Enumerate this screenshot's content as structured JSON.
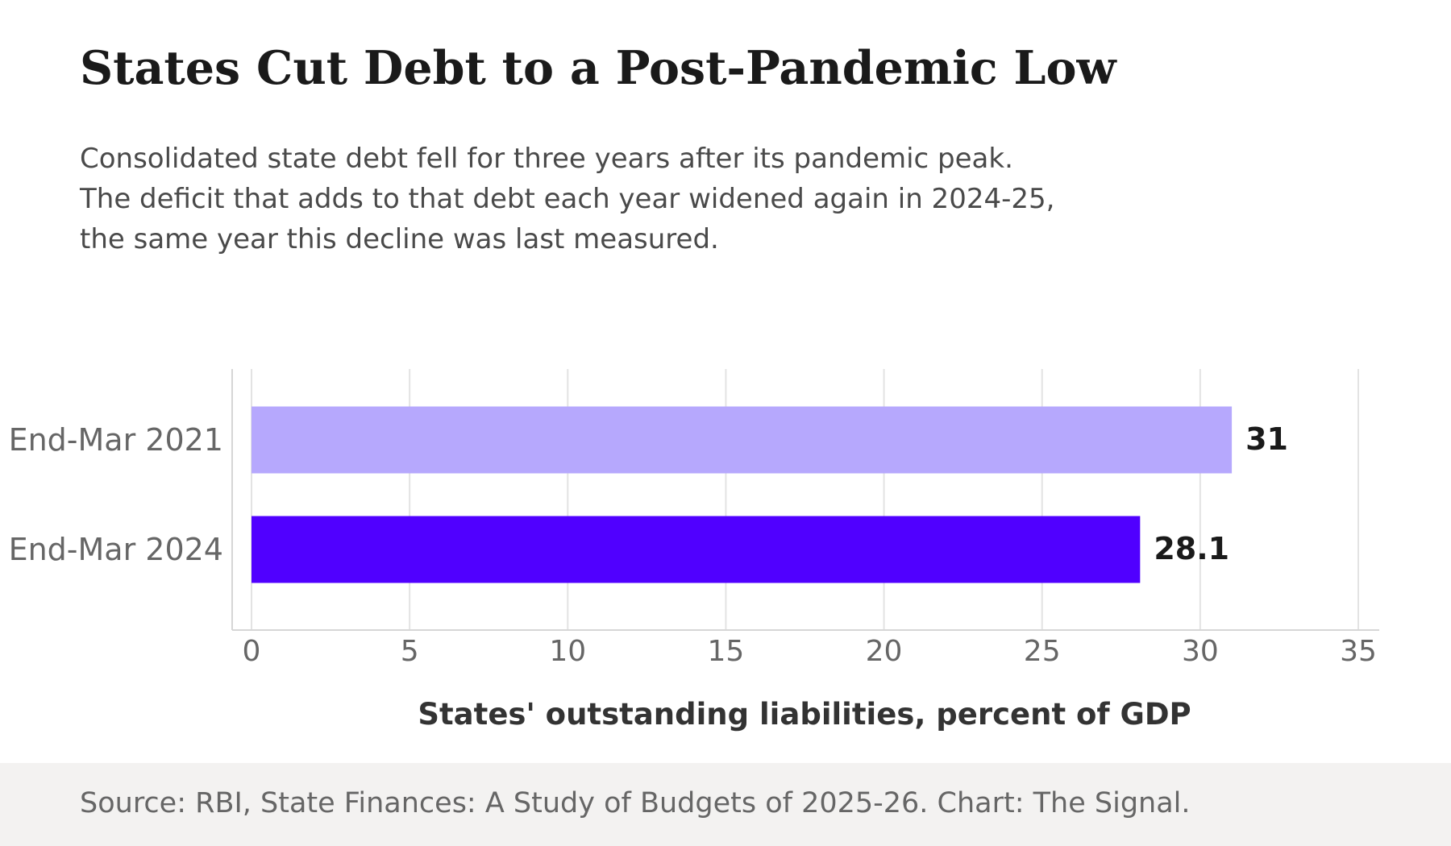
{
  "header": {
    "title": "States Cut Debt to a Post-Pandemic Low",
    "subtitle_lines": [
      "Consolidated state debt fell for three years after its pandemic peak.",
      "The deficit that adds to that debt each year widened again in 2024-25,",
      "the same year this decline was last measured."
    ]
  },
  "chart_data": {
    "type": "bar",
    "orientation": "horizontal",
    "categories": [
      "End-Mar 2021",
      "End-Mar 2024"
    ],
    "values": [
      31,
      28.1
    ],
    "value_labels": [
      "31",
      "28.1"
    ],
    "bar_colors": [
      "#b6a8fd",
      "#5000ff"
    ],
    "xlabel": "States' outstanding liabilities, percent of GDP",
    "ylabel": "",
    "xlim": [
      0,
      35
    ],
    "xticks": [
      0,
      5,
      10,
      15,
      20,
      25,
      30,
      35
    ],
    "grid": "vertical",
    "legend": "none"
  },
  "footer": {
    "source": "Source: RBI, State Finances: A Study of Budgets of 2025-26. Chart: The Signal."
  },
  "colors": {
    "title": "#1a1a1a",
    "subtitle": "#4a4a4a",
    "tick_label": "#666666",
    "axis_label": "#333333",
    "value_label": "#1a1a1a",
    "grid": "#e3e3e3",
    "axis_line": "#d6d6d6",
    "footer_bg": "#f3f2f1"
  }
}
